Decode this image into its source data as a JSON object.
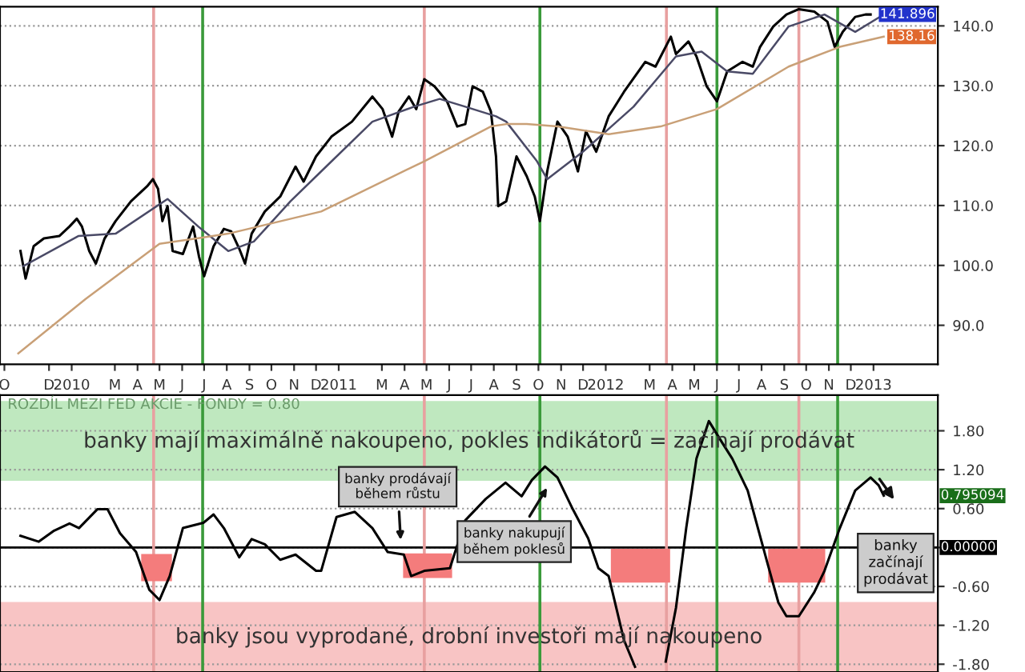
{
  "chart_data": [
    {
      "type": "line",
      "xlim": [
        "2009-09-25",
        "2013-03-30"
      ],
      "ylim": [
        83.5,
        143.2
      ],
      "yticks": [
        {
          "value": 90,
          "label": "90.0"
        },
        {
          "value": 100,
          "label": "100.0"
        },
        {
          "value": 110,
          "label": "110.0"
        },
        {
          "value": 120,
          "label": "120.0"
        },
        {
          "value": 130,
          "label": "130.0"
        },
        {
          "value": 140,
          "label": "140.0"
        }
      ],
      "xticks": [
        {
          "value": "2009-10-01",
          "label": "O"
        },
        {
          "value": "2009-12-01",
          "label": "D"
        },
        {
          "value": "2010-01-01",
          "label": "2010"
        },
        {
          "value": "2010-03-01",
          "label": "M"
        },
        {
          "value": "2010-04-01",
          "label": "A"
        },
        {
          "value": "2010-05-01",
          "label": "M"
        },
        {
          "value": "2010-06-01",
          "label": "J"
        },
        {
          "value": "2010-07-01",
          "label": "J"
        },
        {
          "value": "2010-08-01",
          "label": "A"
        },
        {
          "value": "2010-09-01",
          "label": "S"
        },
        {
          "value": "2010-10-01",
          "label": "O"
        },
        {
          "value": "2010-11-01",
          "label": "N"
        },
        {
          "value": "2010-12-01",
          "label": "D"
        },
        {
          "value": "2011-01-01",
          "label": "2011"
        },
        {
          "value": "2011-03-01",
          "label": "M"
        },
        {
          "value": "2011-04-01",
          "label": "A"
        },
        {
          "value": "2011-05-01",
          "label": "M"
        },
        {
          "value": "2011-06-01",
          "label": "J"
        },
        {
          "value": "2011-07-01",
          "label": "J"
        },
        {
          "value": "2011-08-01",
          "label": "A"
        },
        {
          "value": "2011-09-01",
          "label": "S"
        },
        {
          "value": "2011-10-01",
          "label": "O"
        },
        {
          "value": "2011-11-01",
          "label": "N"
        },
        {
          "value": "2011-12-01",
          "label": "D"
        },
        {
          "value": "2012-01-01",
          "label": "2012"
        },
        {
          "value": "2012-03-01",
          "label": "M"
        },
        {
          "value": "2012-04-01",
          "label": "A"
        },
        {
          "value": "2012-05-01",
          "label": "M"
        },
        {
          "value": "2012-06-01",
          "label": "J"
        },
        {
          "value": "2012-07-01",
          "label": "J"
        },
        {
          "value": "2012-08-01",
          "label": "A"
        },
        {
          "value": "2012-09-01",
          "label": "S"
        },
        {
          "value": "2012-10-01",
          "label": "O"
        },
        {
          "value": "2012-11-01",
          "label": "N"
        },
        {
          "value": "2012-12-01",
          "label": "D"
        },
        {
          "value": "2013-01-01",
          "label": "2013"
        }
      ],
      "grid": "y",
      "marker": "none",
      "series": [
        {
          "color": "#000000",
          "x": [
            "2009-10-23",
            "2009-10-30",
            "2009-11-10",
            "2009-11-24",
            "2009-12-15",
            "2009-12-29",
            "2010-01-08",
            "2010-01-15",
            "2010-01-25",
            "2010-02-03",
            "2010-02-15",
            "2010-03-02",
            "2010-03-23",
            "2010-04-14",
            "2010-04-22",
            "2010-04-29",
            "2010-05-05",
            "2010-05-12",
            "2010-05-19",
            "2010-06-02",
            "2010-06-16",
            "2010-06-24",
            "2010-07-01",
            "2010-07-14",
            "2010-07-28",
            "2010-08-07",
            "2010-08-18",
            "2010-08-26",
            "2010-09-04",
            "2010-09-22",
            "2010-10-13",
            "2010-11-03",
            "2010-11-14",
            "2010-12-01",
            "2010-12-22",
            "2011-01-19",
            "2011-02-16",
            "2011-03-02",
            "2011-03-15",
            "2011-03-24",
            "2011-04-07",
            "2011-04-17",
            "2011-04-28",
            "2011-05-12",
            "2011-05-29",
            "2011-06-12",
            "2011-06-23",
            "2011-07-03",
            "2011-07-17",
            "2011-07-28",
            "2011-08-04",
            "2011-08-07",
            "2011-08-18",
            "2011-09-01",
            "2011-09-15",
            "2011-09-26",
            "2011-10-03",
            "2011-10-13",
            "2011-10-27",
            "2011-11-10",
            "2011-11-24",
            "2011-12-05",
            "2011-12-19",
            "2012-01-05",
            "2012-01-26",
            "2012-02-24",
            "2012-03-09",
            "2012-03-30",
            "2012-04-06",
            "2012-04-23",
            "2012-05-04",
            "2012-05-18",
            "2012-06-01",
            "2012-06-15",
            "2012-07-06",
            "2012-07-20",
            "2012-07-30",
            "2012-08-17",
            "2012-09-04",
            "2012-09-21",
            "2012-10-12",
            "2012-10-30",
            "2012-11-09",
            "2012-11-20",
            "2012-12-07",
            "2012-12-21",
            "2012-12-28"
          ],
          "values": [
            102.4,
            97.8,
            103.2,
            104.5,
            104.9,
            106.5,
            107.8,
            106.5,
            102.4,
            100.3,
            104.5,
            107.4,
            110.7,
            113.2,
            114.4,
            112.8,
            107.4,
            109.9,
            102.4,
            101.9,
            106.5,
            101.5,
            98.2,
            103.2,
            106.1,
            105.7,
            102.8,
            100.3,
            105.3,
            109.0,
            111.5,
            116.5,
            114.0,
            118.2,
            121.5,
            124.0,
            128.2,
            126.1,
            121.5,
            125.7,
            128.2,
            126.1,
            131.1,
            129.9,
            127.4,
            123.2,
            123.6,
            129.9,
            129.0,
            125.7,
            118.2,
            109.9,
            110.7,
            118.2,
            114.9,
            111.5,
            107.4,
            115.7,
            124.0,
            121.5,
            115.7,
            122.4,
            119.0,
            124.9,
            129.0,
            134.0,
            133.2,
            138.2,
            135.3,
            137.4,
            134.9,
            129.9,
            127.4,
            132.4,
            134.0,
            133.2,
            136.5,
            139.9,
            141.9,
            142.8,
            142.4,
            140.7,
            136.5,
            139.0,
            141.5,
            141.9,
            141.9
          ]
        },
        {
          "color": "#4a4a66",
          "x": [
            "2009-10-27",
            "2010-01-10",
            "2010-03-02",
            "2010-05-12",
            "2010-06-23",
            "2010-08-03",
            "2010-09-07",
            "2010-10-27",
            "2010-12-08",
            "2011-02-16",
            "2011-04-14",
            "2011-05-19",
            "2011-06-23",
            "2011-08-04",
            "2011-08-18",
            "2011-09-29",
            "2011-10-13",
            "2011-12-01",
            "2012-02-08",
            "2012-04-06",
            "2012-05-11",
            "2012-06-15",
            "2012-07-20",
            "2012-09-07",
            "2012-10-26",
            "2012-12-07",
            "2013-01-15"
          ],
          "values": [
            99.9,
            104.9,
            105.3,
            111.1,
            106.5,
            102.4,
            104.0,
            110.7,
            115.7,
            124.0,
            126.5,
            127.8,
            126.5,
            124.9,
            124.0,
            117.4,
            114.4,
            119.0,
            126.5,
            134.9,
            135.7,
            132.4,
            132.0,
            139.9,
            141.9,
            139.0,
            141.9
          ]
        },
        {
          "color": "#c9a077",
          "x": [
            "2009-10-20",
            "2010-01-20",
            "2010-05-01",
            "2010-08-03",
            "2010-12-08",
            "2011-04-28",
            "2011-07-28",
            "2011-08-18",
            "2011-09-15",
            "2011-10-27",
            "2012-01-05",
            "2012-03-16",
            "2012-06-01",
            "2012-09-07",
            "2012-11-16",
            "2013-01-15"
          ],
          "values": [
            85.3,
            94.4,
            103.6,
            105.3,
            109.0,
            117.4,
            123.2,
            123.6,
            123.6,
            123.2,
            121.9,
            123.2,
            126.1,
            133.2,
            136.5,
            138.2
          ]
        }
      ],
      "ref_lines": [
        {
          "axis": "x",
          "value": "2010-04-23",
          "color": "#e8a0a0"
        },
        {
          "axis": "x",
          "value": "2011-04-28",
          "color": "#e8a0a0"
        },
        {
          "axis": "x",
          "value": "2012-03-24",
          "color": "#e8a0a0"
        },
        {
          "axis": "x",
          "value": "2012-09-21",
          "color": "#e8a0a0"
        },
        {
          "axis": "x",
          "value": "2010-06-29",
          "color": "#3a9a3a"
        },
        {
          "axis": "x",
          "value": "2011-10-03",
          "color": "#3a9a3a"
        },
        {
          "axis": "x",
          "value": "2012-06-01",
          "color": "#3a9a3a"
        },
        {
          "axis": "x",
          "value": "2012-11-13",
          "color": "#3a9a3a"
        }
      ],
      "annotations": [
        "141.896",
        "138.16"
      ]
    },
    {
      "type": "line",
      "title": "ROZDÍL MEZI FED AKCIE - FONDY = 0.80",
      "xlim": [
        "2009-09-25",
        "2013-03-30"
      ],
      "ylim": [
        -1.92,
        2.35
      ],
      "yticks": [
        {
          "value": 1.8,
          "label": "1.80"
        },
        {
          "value": 1.2,
          "label": "1.20"
        },
        {
          "value": 0.6,
          "label": "0.60"
        },
        {
          "value": 0,
          "label": null
        },
        {
          "value": -0.6,
          "label": "-0.60"
        },
        {
          "value": -1.2,
          "label": "-1.20"
        },
        {
          "value": -1.8,
          "label": "-1.80"
        }
      ],
      "grid": "y",
      "tick_labels": "y",
      "marker": "none",
      "series": [
        {
          "color": "#000000",
          "x": [
            "2009-10-23",
            "2009-11-17",
            "2009-12-08",
            "2009-12-29",
            "2010-01-11",
            "2010-02-05",
            "2010-02-19",
            "2010-03-08",
            "2010-03-30",
            "2010-04-17",
            "2010-05-01",
            "2010-05-15",
            "2010-06-02",
            "2010-06-30",
            "2010-07-14",
            "2010-07-28",
            "2010-08-18",
            "2010-09-04",
            "2010-09-22",
            "2010-10-13",
            "2010-11-03",
            "2010-12-01",
            "2010-12-08",
            "2010-12-29",
            "2011-01-23",
            "2011-02-16",
            "2011-03-09",
            "2011-03-31",
            "2011-04-10",
            "2011-04-28",
            "2011-06-02",
            "2011-06-23",
            "2011-07-21",
            "2011-08-17",
            "2011-09-08",
            "2011-09-22",
            "2011-10-10",
            "2011-10-27",
            "2011-11-17",
            "2011-12-08",
            "2011-12-22",
            "2012-01-05",
            "2012-01-26",
            "2012-02-10",
            "2012-03-02",
            "2012-03-23",
            "2012-04-06",
            "2012-04-20",
            "2012-05-04",
            "2012-05-21",
            "2012-06-08",
            "2012-06-22",
            "2012-07-13",
            "2012-07-27",
            "2012-08-10",
            "2012-08-24",
            "2012-09-04",
            "2012-09-21",
            "2012-10-12",
            "2012-10-26",
            "2012-11-16",
            "2012-12-07",
            "2012-12-28",
            "2013-01-08",
            "2013-01-15"
          ],
          "values": [
            0.18,
            0.09,
            0.26,
            0.37,
            0.3,
            0.59,
            0.59,
            0.22,
            -0.07,
            -0.65,
            -0.81,
            -0.44,
            0.3,
            0.38,
            0.51,
            0.3,
            -0.15,
            0.13,
            0.05,
            -0.19,
            -0.11,
            -0.36,
            -0.36,
            0.47,
            0.55,
            0.3,
            -0.07,
            -0.11,
            -0.44,
            -0.36,
            -0.32,
            0.42,
            0.75,
            1.0,
            0.79,
            1.04,
            1.25,
            1.08,
            0.59,
            0.14,
            -0.32,
            -0.44,
            -1.43,
            -1.84,
            null,
            -1.76,
            -0.93,
            0.3,
            1.37,
            1.95,
            1.62,
            1.37,
            0.88,
            0.3,
            -0.28,
            -0.85,
            -1.06,
            -1.06,
            -0.69,
            -0.36,
            0.3,
            0.88,
            1.08,
            0.96,
            0.8
          ]
        },
        {
          "type": "area",
          "color": "#f47c7c",
          "x": [
            "2010-04-06",
            "2010-05-18",
            "2010-05-18",
            "2010-04-06"
          ],
          "values": [
            -0.1,
            -0.1,
            -0.52,
            -0.52
          ]
        },
        {
          "type": "area",
          "color": "#f47c7c",
          "x": [
            "2011-03-30",
            "2011-06-05",
            "2011-06-05",
            "2011-03-30"
          ],
          "values": [
            -0.09,
            -0.09,
            -0.47,
            -0.47
          ]
        },
        {
          "type": "area",
          "color": "#f47c7c",
          "x": [
            "2012-01-08",
            "2012-03-29",
            "2012-03-29",
            "2012-01-08"
          ],
          "values": [
            -0.02,
            -0.02,
            -0.54,
            -0.54
          ]
        },
        {
          "type": "area",
          "color": "#f47c7c",
          "x": [
            "2012-08-10",
            "2012-10-27",
            "2012-10-27",
            "2012-08-10"
          ],
          "values": [
            -0.02,
            -0.02,
            -0.54,
            -0.54
          ]
        }
      ],
      "bands": [
        {
          "axis": "y",
          "from": 1.03,
          "to": 2.26,
          "color": "#bfe8bf",
          "label": "banky mají maximálně nakoupeno, pokles indikátorů = začínají prodávat"
        },
        {
          "axis": "y",
          "from": -1.92,
          "to": -0.84,
          "color": "#f8c4c4",
          "label": "banky jsou vyprodané, drobní investoři mají nakoupeno"
        }
      ],
      "ref_lines": [
        {
          "axis": "y",
          "value": 0,
          "color": "#000000",
          "label": "0.00000"
        },
        {
          "axis": "x",
          "value": "2010-04-23",
          "color": "#e8a0a0"
        },
        {
          "axis": "x",
          "value": "2011-04-28",
          "color": "#e8a0a0"
        },
        {
          "axis": "x",
          "value": "2012-03-24",
          "color": "#e8a0a0"
        },
        {
          "axis": "x",
          "value": "2012-09-21",
          "color": "#e8a0a0"
        },
        {
          "axis": "x",
          "value": "2010-06-29",
          "color": "#3a9a3a"
        },
        {
          "axis": "x",
          "value": "2011-10-03",
          "color": "#3a9a3a"
        },
        {
          "axis": "x",
          "value": "2012-06-01",
          "color": "#3a9a3a"
        },
        {
          "axis": "x",
          "value": "2012-11-13",
          "color": "#3a9a3a"
        }
      ],
      "annotations": [
        {
          "text": "banky prodávají\nběhem růstu",
          "x": "2011-03-27",
          "y": 0.05
        },
        {
          "text": "banky nakupují\nběhem poklesů",
          "x": "2011-10-16",
          "y": 0.98
        },
        "banky\nzačínají\nprodávat",
        "0.795094"
      ]
    }
  ]
}
